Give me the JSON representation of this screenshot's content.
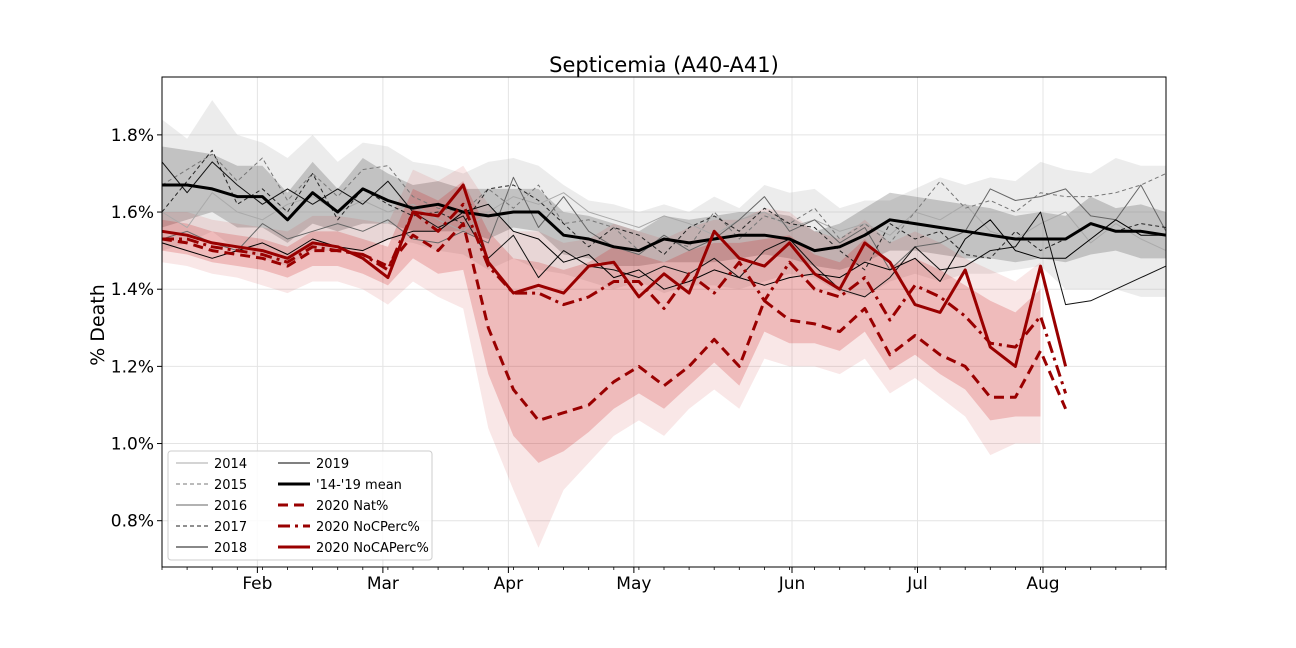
{
  "chart_data": {
    "type": "line",
    "title": "Septicemia (A40-A41)",
    "xlabel": "",
    "ylabel": "% Death",
    "ylim": [
      0.68,
      1.95
    ],
    "xlim": [
      0,
      40
    ],
    "y_ticks": [
      0.8,
      1.0,
      1.2,
      1.4,
      1.6,
      1.8
    ],
    "y_tick_labels": [
      "0.8%",
      "1.0%",
      "1.2%",
      "1.4%",
      "1.6%",
      "1.8%"
    ],
    "x_ticks": [
      3.8,
      8.8,
      13.8,
      18.8,
      25.1,
      30.1,
      35.1
    ],
    "x_tick_labels": [
      "Feb",
      "Mar",
      "Apr",
      "May",
      "Jun",
      "Jul",
      "Aug"
    ],
    "grid": true,
    "legend_position": "lower-left",
    "legend_columns": 2,
    "x": [
      0,
      1,
      2,
      3,
      4,
      5,
      6,
      7,
      8,
      9,
      10,
      11,
      12,
      13,
      14,
      15,
      16,
      17,
      18,
      19,
      20,
      21,
      22,
      23,
      24,
      25,
      26,
      27,
      28,
      29,
      30,
      31,
      32,
      33,
      34,
      35,
      36,
      37,
      38,
      39,
      40
    ],
    "series": [
      {
        "name": "2014",
        "style": "thin-solid-light",
        "color": "#aaaaaa",
        "values": [
          1.6,
          1.56,
          1.65,
          1.6,
          1.58,
          1.62,
          1.64,
          1.6,
          1.63,
          1.6,
          1.62,
          1.58,
          1.55,
          1.6,
          1.64,
          1.62,
          1.65,
          1.6,
          1.58,
          1.56,
          1.59,
          1.57,
          1.54,
          1.58,
          1.6,
          1.56,
          1.58,
          1.55,
          1.57,
          1.54,
          1.6,
          1.58,
          1.62,
          1.55,
          1.53,
          1.57,
          1.6,
          1.52,
          1.57,
          1.53,
          1.5
        ]
      },
      {
        "name": "2015",
        "style": "thin-dashed",
        "color": "#777777",
        "values": [
          1.67,
          1.71,
          1.75,
          1.68,
          1.74,
          1.63,
          1.7,
          1.64,
          1.71,
          1.72,
          1.64,
          1.61,
          1.6,
          1.66,
          1.61,
          1.67,
          1.57,
          1.58,
          1.56,
          1.5,
          1.53,
          1.51,
          1.6,
          1.53,
          1.59,
          1.57,
          1.61,
          1.53,
          1.57,
          1.52,
          1.6,
          1.68,
          1.61,
          1.63,
          1.6,
          1.65,
          1.64,
          1.64,
          1.65,
          1.67,
          1.7
        ]
      },
      {
        "name": "2016",
        "style": "thin-solid",
        "color": "#666666",
        "values": [
          1.53,
          1.55,
          1.52,
          1.5,
          1.57,
          1.53,
          1.55,
          1.57,
          1.55,
          1.58,
          1.53,
          1.52,
          1.55,
          1.52,
          1.69,
          1.56,
          1.64,
          1.55,
          1.51,
          1.49,
          1.54,
          1.5,
          1.53,
          1.58,
          1.64,
          1.55,
          1.58,
          1.52,
          1.56,
          1.45,
          1.51,
          1.52,
          1.55,
          1.66,
          1.63,
          1.64,
          1.66,
          1.59,
          1.58,
          1.67,
          1.55
        ]
      },
      {
        "name": "2017",
        "style": "thin-dashed-dark",
        "color": "#222222",
        "values": [
          1.6,
          1.68,
          1.76,
          1.62,
          1.66,
          1.6,
          1.7,
          1.58,
          1.66,
          1.62,
          1.59,
          1.6,
          1.57,
          1.66,
          1.67,
          1.63,
          1.57,
          1.51,
          1.56,
          1.54,
          1.49,
          1.56,
          1.59,
          1.55,
          1.61,
          1.57,
          1.56,
          1.5,
          1.45,
          1.57,
          1.53,
          1.55,
          1.49,
          1.48,
          1.55,
          1.5,
          1.53,
          1.57,
          1.55,
          1.57,
          1.56
        ]
      },
      {
        "name": "2018",
        "style": "thin-solid-dark",
        "color": "#111111",
        "values": [
          1.73,
          1.65,
          1.73,
          1.67,
          1.62,
          1.66,
          1.62,
          1.66,
          1.62,
          1.68,
          1.6,
          1.56,
          1.59,
          1.48,
          1.54,
          1.43,
          1.5,
          1.46,
          1.45,
          1.43,
          1.46,
          1.44,
          1.48,
          1.43,
          1.5,
          1.53,
          1.46,
          1.4,
          1.38,
          1.43,
          1.51,
          1.45,
          1.46,
          1.5,
          1.51,
          1.6,
          1.36,
          1.37,
          1.4,
          1.43,
          1.46
        ]
      },
      {
        "name": "2019",
        "style": "thin-solid-black",
        "color": "#000000",
        "values": [
          1.52,
          1.5,
          1.48,
          1.5,
          1.52,
          1.49,
          1.53,
          1.51,
          1.5,
          1.53,
          1.55,
          1.55,
          1.6,
          1.62,
          1.55,
          1.53,
          1.47,
          1.49,
          1.43,
          1.45,
          1.4,
          1.42,
          1.45,
          1.43,
          1.41,
          1.43,
          1.44,
          1.43,
          1.47,
          1.45,
          1.48,
          1.42,
          1.53,
          1.58,
          1.5,
          1.48,
          1.48,
          1.53,
          1.58,
          1.54,
          1.54
        ]
      },
      {
        "name": "'14-'19 mean",
        "style": "thick-solid-black",
        "color": "#000000",
        "values": [
          1.67,
          1.67,
          1.66,
          1.64,
          1.64,
          1.58,
          1.65,
          1.6,
          1.66,
          1.63,
          1.61,
          1.62,
          1.6,
          1.59,
          1.6,
          1.6,
          1.54,
          1.53,
          1.51,
          1.5,
          1.53,
          1.52,
          1.53,
          1.54,
          1.54,
          1.53,
          1.5,
          1.51,
          1.54,
          1.58,
          1.57,
          1.56,
          1.55,
          1.54,
          1.53,
          1.53,
          1.53,
          1.57,
          1.55,
          1.55,
          1.54
        ]
      },
      {
        "name": "2020 Nat%",
        "style": "thick-dashed-red",
        "color": "#990000",
        "values": [
          1.53,
          1.52,
          1.5,
          1.49,
          1.48,
          1.46,
          1.5,
          1.5,
          1.49,
          1.46,
          1.54,
          1.5,
          1.57,
          1.3,
          1.14,
          1.06,
          1.08,
          1.1,
          1.16,
          1.2,
          1.15,
          1.2,
          1.27,
          1.2,
          1.37,
          1.32,
          1.31,
          1.29,
          1.35,
          1.23,
          1.28,
          1.23,
          1.2,
          1.12,
          1.12,
          1.24,
          1.09,
          null,
          null,
          null,
          null
        ]
      },
      {
        "name": "2020 NoCPerc%",
        "style": "thick-dashdot-red",
        "color": "#990000",
        "values": [
          1.53,
          1.53,
          1.51,
          1.5,
          1.49,
          1.47,
          1.51,
          1.5,
          1.49,
          1.45,
          1.6,
          1.55,
          1.62,
          1.46,
          1.39,
          1.39,
          1.36,
          1.38,
          1.42,
          1.42,
          1.35,
          1.44,
          1.39,
          1.47,
          1.37,
          1.47,
          1.4,
          1.38,
          1.43,
          1.32,
          1.41,
          1.38,
          1.33,
          1.26,
          1.25,
          1.33,
          1.13,
          null,
          null,
          null,
          null
        ]
      },
      {
        "name": "2020 NoCAPerc%",
        "style": "thick-solid-red",
        "color": "#990000",
        "values": [
          1.55,
          1.54,
          1.52,
          1.51,
          1.5,
          1.48,
          1.52,
          1.51,
          1.48,
          1.43,
          1.6,
          1.59,
          1.67,
          1.47,
          1.39,
          1.41,
          1.39,
          1.46,
          1.47,
          1.38,
          1.44,
          1.39,
          1.55,
          1.48,
          1.46,
          1.52,
          1.44,
          1.4,
          1.52,
          1.47,
          1.36,
          1.34,
          1.45,
          1.25,
          1.2,
          1.46,
          1.2,
          null,
          null,
          null,
          null
        ]
      }
    ],
    "bands": [
      {
        "color": "#bbbbbb",
        "opacity": 0.28,
        "lower": [
          1.5,
          1.52,
          1.55,
          1.5,
          1.48,
          1.46,
          1.5,
          1.5,
          1.5,
          1.53,
          1.52,
          1.5,
          1.49,
          1.45,
          1.48,
          1.45,
          1.44,
          1.42,
          1.4,
          1.42,
          1.39,
          1.41,
          1.41,
          1.4,
          1.42,
          1.44,
          1.43,
          1.39,
          1.38,
          1.42,
          1.44,
          1.42,
          1.44,
          1.44,
          1.45,
          1.46,
          1.4,
          1.4,
          1.4,
          1.38,
          1.38
        ],
        "upper": [
          1.84,
          1.79,
          1.89,
          1.8,
          1.78,
          1.74,
          1.8,
          1.73,
          1.78,
          1.77,
          1.73,
          1.72,
          1.7,
          1.73,
          1.74,
          1.72,
          1.67,
          1.63,
          1.62,
          1.6,
          1.62,
          1.6,
          1.64,
          1.61,
          1.67,
          1.65,
          1.66,
          1.61,
          1.63,
          1.63,
          1.66,
          1.69,
          1.67,
          1.69,
          1.68,
          1.73,
          1.71,
          1.7,
          1.74,
          1.72,
          1.72
        ]
      },
      {
        "color": "#555555",
        "opacity": 0.28,
        "lower": [
          1.56,
          1.58,
          1.6,
          1.56,
          1.56,
          1.52,
          1.57,
          1.55,
          1.57,
          1.57,
          1.55,
          1.55,
          1.55,
          1.53,
          1.56,
          1.55,
          1.49,
          1.48,
          1.46,
          1.46,
          1.47,
          1.47,
          1.47,
          1.48,
          1.49,
          1.48,
          1.46,
          1.45,
          1.47,
          1.5,
          1.5,
          1.49,
          1.48,
          1.48,
          1.47,
          1.48,
          1.47,
          1.49,
          1.5,
          1.48,
          1.48
        ],
        "upper": [
          1.77,
          1.76,
          1.75,
          1.72,
          1.72,
          1.65,
          1.73,
          1.66,
          1.74,
          1.7,
          1.67,
          1.68,
          1.66,
          1.66,
          1.66,
          1.66,
          1.6,
          1.59,
          1.57,
          1.55,
          1.59,
          1.58,
          1.59,
          1.6,
          1.6,
          1.59,
          1.55,
          1.57,
          1.61,
          1.65,
          1.64,
          1.63,
          1.62,
          1.61,
          1.59,
          1.6,
          1.59,
          1.64,
          1.61,
          1.62,
          1.6
        ]
      },
      {
        "color": "#cc2222",
        "opacity": 0.11,
        "lower": [
          1.47,
          1.46,
          1.44,
          1.43,
          1.41,
          1.39,
          1.42,
          1.42,
          1.4,
          1.36,
          1.42,
          1.38,
          1.35,
          1.04,
          0.88,
          0.73,
          0.88,
          0.95,
          1.02,
          1.06,
          1.02,
          1.09,
          1.14,
          1.09,
          1.22,
          1.2,
          1.2,
          1.18,
          1.22,
          1.13,
          1.17,
          1.12,
          1.07,
          0.97,
          1.0,
          1.0,
          null,
          null,
          null,
          null,
          null
        ],
        "upper": [
          1.6,
          1.6,
          1.58,
          1.57,
          1.56,
          1.55,
          1.59,
          1.59,
          1.58,
          1.57,
          1.71,
          1.68,
          1.72,
          1.62,
          1.55,
          1.55,
          1.52,
          1.53,
          1.57,
          1.55,
          1.53,
          1.56,
          1.58,
          1.58,
          1.61,
          1.6,
          1.55,
          1.53,
          1.58,
          1.52,
          1.55,
          1.52,
          1.48,
          1.45,
          1.42,
          1.47,
          null,
          null,
          null,
          null,
          null
        ]
      },
      {
        "color": "#cc2222",
        "opacity": 0.22,
        "lower": [
          1.5,
          1.49,
          1.47,
          1.46,
          1.45,
          1.43,
          1.46,
          1.46,
          1.44,
          1.41,
          1.48,
          1.44,
          1.45,
          1.18,
          1.02,
          0.95,
          0.98,
          1.03,
          1.09,
          1.13,
          1.09,
          1.15,
          1.21,
          1.15,
          1.29,
          1.26,
          1.26,
          1.24,
          1.29,
          1.19,
          1.23,
          1.18,
          1.14,
          1.06,
          1.07,
          1.07,
          null,
          null,
          null,
          null,
          null
        ],
        "upper": [
          1.58,
          1.57,
          1.55,
          1.54,
          1.53,
          1.51,
          1.55,
          1.55,
          1.53,
          1.51,
          1.66,
          1.63,
          1.68,
          1.55,
          1.48,
          1.47,
          1.45,
          1.47,
          1.51,
          1.49,
          1.47,
          1.5,
          1.52,
          1.52,
          1.53,
          1.54,
          1.49,
          1.47,
          1.53,
          1.46,
          1.48,
          1.45,
          1.41,
          1.37,
          1.34,
          1.4,
          null,
          null,
          null,
          null,
          null
        ]
      }
    ],
    "legend": [
      "2014",
      "2015",
      "2016",
      "2017",
      "2018",
      "2019",
      "'14-'19 mean",
      "2020 Nat%",
      "2020 NoCPerc%",
      "2020 NoCAPerc%"
    ]
  }
}
